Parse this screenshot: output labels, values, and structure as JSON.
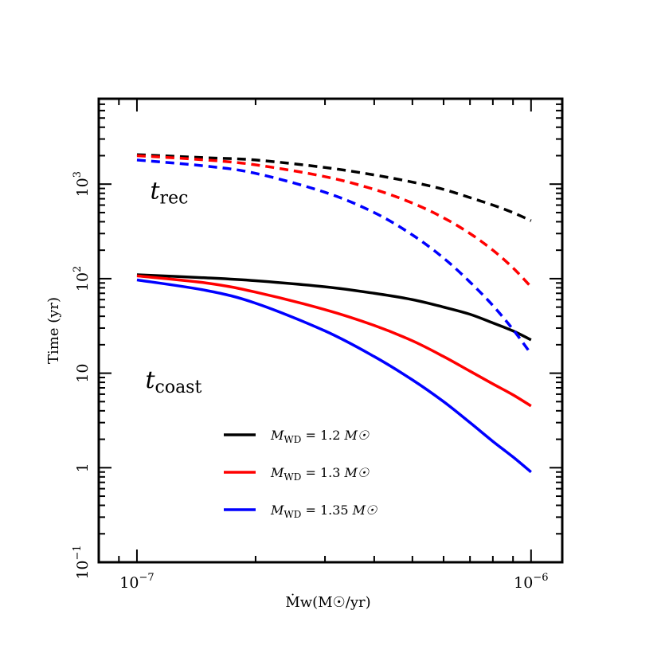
{
  "chart_data": {
    "type": "line",
    "title": "",
    "xlabel": "Ṁw(M☉/yr)",
    "ylabel": "Time (yr)",
    "xscale": "log",
    "yscale": "log",
    "xlim": [
      8e-08,
      1.2e-06
    ],
    "ylim": [
      0.1,
      8000
    ],
    "xticks": [
      {
        "value": 1e-07,
        "mantissa": "10",
        "exp": "−7"
      },
      {
        "value": 1e-06,
        "mantissa": "10",
        "exp": "−6"
      }
    ],
    "yticks": [
      {
        "value": 0.1,
        "mantissa": "10",
        "exp": "−1"
      },
      {
        "value": 1,
        "mantissa": "1",
        "exp": ""
      },
      {
        "value": 10,
        "mantissa": "10",
        "exp": ""
      },
      {
        "value": 100,
        "mantissa": "10",
        "exp": "2"
      },
      {
        "value": 1000,
        "mantissa": "10",
        "exp": "3"
      }
    ],
    "annotations": [
      {
        "main": "t",
        "sub": "rec",
        "x": 1.08e-07,
        "y": 700
      },
      {
        "main": "t",
        "sub": "coast",
        "x": 1.05e-07,
        "y": 7
      }
    ],
    "legend_position": "lower-center",
    "x": [
      1e-07,
      1.5e-07,
      2e-07,
      3e-07,
      4e-07,
      5e-07,
      6e-07,
      7e-07,
      8e-07,
      9e-07,
      1e-06
    ],
    "series": [
      {
        "name": "M_WD = 1.2 M☉",
        "legend": {
          "prefix": "M",
          "sub": "WD",
          "value": " = 1.2 ",
          "unit": "M☉"
        },
        "kind": "t_coast",
        "color": "#000000",
        "dash": "solid",
        "values": [
          110,
          102,
          95,
          82,
          70,
          60,
          50,
          42,
          34,
          28,
          22.5
        ]
      },
      {
        "name": "M_WD = 1.3 M☉",
        "legend": {
          "prefix": "M",
          "sub": "WD",
          "value": " = 1.3 ",
          "unit": "M☉"
        },
        "kind": "t_coast",
        "color": "#ff0000",
        "dash": "solid",
        "values": [
          107,
          90,
          72,
          47,
          32,
          22,
          15,
          10.5,
          7.7,
          5.9,
          4.5
        ]
      },
      {
        "name": "M_WD = 1.35 M☉",
        "legend": {
          "prefix": "M",
          "sub": "WD",
          "value": " = 1.35 ",
          "unit": "M☉"
        },
        "kind": "t_coast",
        "color": "#0000ff",
        "dash": "solid",
        "values": [
          97,
          75,
          55,
          28,
          15,
          8.5,
          5,
          3,
          1.9,
          1.3,
          0.9
        ]
      },
      {
        "kind": "t_rec",
        "color": "#000000",
        "dash": "dashed",
        "values": [
          2050,
          1900,
          1800,
          1500,
          1250,
          1050,
          880,
          720,
          600,
          500,
          410
        ]
      },
      {
        "kind": "t_rec",
        "color": "#ff0000",
        "dash": "dashed",
        "values": [
          2000,
          1800,
          1600,
          1200,
          880,
          630,
          440,
          300,
          200,
          130,
          82
        ]
      },
      {
        "kind": "t_rec",
        "color": "#0000ff",
        "dash": "dashed",
        "values": [
          1800,
          1550,
          1300,
          820,
          500,
          290,
          165,
          92,
          52,
          29,
          16
        ]
      }
    ]
  }
}
